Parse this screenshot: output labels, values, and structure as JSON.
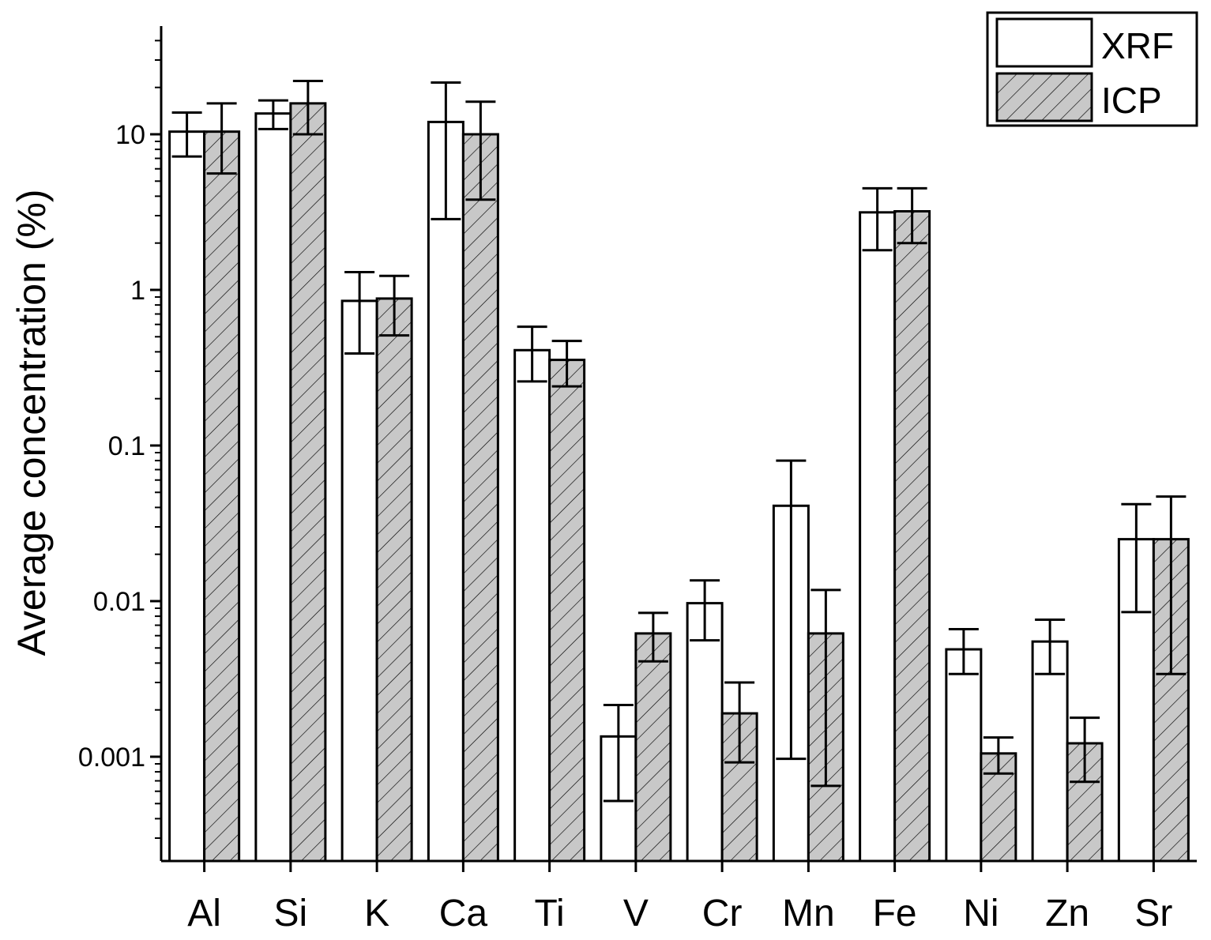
{
  "chart_data": {
    "type": "bar",
    "title": "",
    "xlabel": "",
    "ylabel": "Average concentration (%)",
    "yscale": "log",
    "ylim": [
      0.0003,
      60
    ],
    "yticks": [
      {
        "value": 10,
        "label": "10"
      },
      {
        "value": 1,
        "label": "1"
      },
      {
        "value": 0.1,
        "label": "0.1"
      },
      {
        "value": 0.01,
        "label": "0.01"
      },
      {
        "value": 0.001,
        "label": "0.001"
      }
    ],
    "legend_position": "top-right",
    "grid": false,
    "categories": [
      "Al",
      "Si",
      "K",
      "Ca",
      "Ti",
      "V",
      "Cr",
      "Mn",
      "Fe",
      "Ni",
      "Zn",
      "Sr"
    ],
    "series": [
      {
        "name": "XRF",
        "fill": "#ffffff",
        "pattern": "none",
        "values": [
          10.4,
          13.6,
          0.85,
          12.0,
          0.41,
          0.00135,
          0.0097,
          0.041,
          3.15,
          0.0049,
          0.0055,
          0.025
        ],
        "err_low": [
          7.2,
          10.8,
          0.39,
          2.85,
          0.258,
          0.00052,
          0.0056,
          0.00097,
          1.8,
          0.0034,
          0.0034,
          0.0085
        ],
        "err_high": [
          13.8,
          16.5,
          1.3,
          21.5,
          0.58,
          0.00215,
          0.0136,
          0.08,
          4.5,
          0.0066,
          0.0076,
          0.042
        ]
      },
      {
        "name": "ICP",
        "fill": "#c8c8c8",
        "pattern": "hatch",
        "values": [
          10.4,
          15.8,
          0.88,
          10.0,
          0.355,
          0.0062,
          0.0019,
          0.0062,
          3.2,
          0.00105,
          0.00122,
          0.025
        ],
        "err_low": [
          5.6,
          10.0,
          0.51,
          3.8,
          0.24,
          0.0041,
          0.00092,
          0.00065,
          2.0,
          0.00078,
          0.00069,
          0.0034
        ],
        "err_high": [
          15.8,
          22.0,
          1.23,
          16.2,
          0.47,
          0.0084,
          0.003,
          0.0118,
          4.5,
          0.00133,
          0.00178,
          0.047
        ]
      }
    ]
  }
}
